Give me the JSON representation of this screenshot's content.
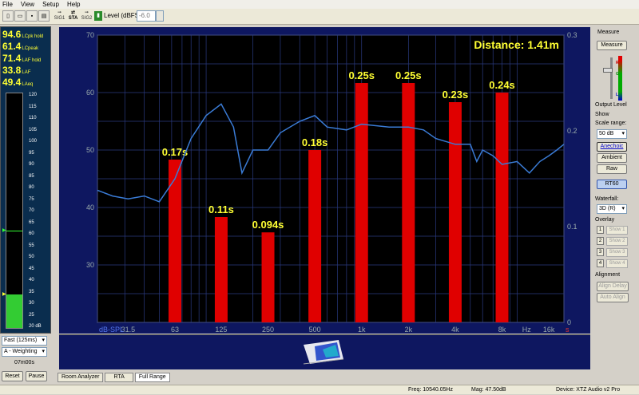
{
  "menu": [
    "File",
    "View",
    "Setup",
    "Help"
  ],
  "toolbar": {
    "sig1": "SIG1",
    "sta": "STA",
    "sig2": "SIG2",
    "level_label": "Level (dBFS):",
    "level_value": "-6.0"
  },
  "meter": {
    "readings": [
      {
        "value": "94.6",
        "label": "LCpk hold"
      },
      {
        "value": "61.4",
        "label": "LCpeak"
      },
      {
        "value": "71.4",
        "label": "LAF hold"
      },
      {
        "value": "33.8",
        "label": "LAF"
      },
      {
        "value": "49.4",
        "label": "LAeq"
      }
    ],
    "scale": [
      "120",
      "115",
      "110",
      "105",
      "100",
      "95",
      "90",
      "85",
      "80",
      "75",
      "70",
      "65",
      "60",
      "55",
      "50",
      "45",
      "40",
      "35",
      "30",
      "25",
      "20 dB"
    ],
    "level": 33.8,
    "hold": 61.4,
    "speed": "Fast (125ms)",
    "weighting": "A - Weighting",
    "time": "07m00s",
    "reset": "Reset",
    "pause": "Pause"
  },
  "tabs": [
    "Room Analyzer",
    "RTA",
    "Full Range"
  ],
  "right_panel": {
    "measure_heading": "Measure",
    "measure_btn": "Measure",
    "output_level": "Output Level",
    "show": "Show",
    "scale_range": "Scale range:",
    "scale_value": "50 dB",
    "anechoic": "Anechoic",
    "ambient": "Ambient",
    "raw": "Raw",
    "rt60": "RT60",
    "waterfall": "Waterfall:",
    "waterfall_value": "3D (R)",
    "overlay": "Overlay",
    "overlays": [
      {
        "n": "1",
        "label": "Show 1"
      },
      {
        "n": "2",
        "label": "Show 2"
      },
      {
        "n": "3",
        "label": "Show 3"
      },
      {
        "n": "4",
        "label": "Show 4"
      }
    ],
    "alignment": "Alignment",
    "align_delay": "Align Delay",
    "auto_align": "Auto Align",
    "slider_labels": [
      "R",
      "G",
      "L"
    ]
  },
  "status": {
    "freq": "Freq: 10540.05Hz",
    "mag": "Mag: 47.50dB",
    "device": "Device: XTZ Audio v2 Pro"
  },
  "chart_data": {
    "type": "bar",
    "distance_label": "Distance: 1.41m",
    "ylabel": "dB-SPL",
    "y2label": "s",
    "x_unit_label": "Hz",
    "ylim": [
      20,
      70
    ],
    "y2lim": [
      0,
      0.3
    ],
    "yticks": [
      "70",
      "60",
      "50",
      "40",
      "30"
    ],
    "y2ticks": [
      "0.3",
      "0.2",
      "0.1",
      "0"
    ],
    "x_ticks": [
      "31.5",
      "63",
      "125",
      "250",
      "500",
      "1k",
      "2k",
      "4k",
      "8k",
      "16k"
    ],
    "bars": {
      "categories": [
        "63",
        "125",
        "250",
        "500",
        "1k",
        "2k",
        "4k",
        "8k"
      ],
      "values": [
        0.17,
        0.11,
        0.094,
        0.18,
        0.25,
        0.25,
        0.23,
        0.24
      ],
      "labels": [
        "0.17s",
        "0.11s",
        "0.094s",
        "0.18s",
        "0.25s",
        "0.25s",
        "0.23s",
        "0.24s"
      ],
      "color": "#e00000"
    },
    "response_line": {
      "color": "#3a7bd5",
      "points": [
        [
          20,
          43
        ],
        [
          25,
          42
        ],
        [
          31.5,
          41.5
        ],
        [
          40,
          42
        ],
        [
          50,
          41
        ],
        [
          63,
          45
        ],
        [
          80,
          52
        ],
        [
          100,
          56
        ],
        [
          125,
          58
        ],
        [
          150,
          54
        ],
        [
          170,
          46
        ],
        [
          200,
          50
        ],
        [
          250,
          50
        ],
        [
          300,
          53
        ],
        [
          400,
          55
        ],
        [
          500,
          56
        ],
        [
          600,
          54
        ],
        [
          800,
          53.5
        ],
        [
          1000,
          54.5
        ],
        [
          1500,
          54
        ],
        [
          2000,
          54
        ],
        [
          2500,
          53.5
        ],
        [
          3000,
          52
        ],
        [
          4000,
          51
        ],
        [
          5000,
          51
        ],
        [
          5500,
          48
        ],
        [
          6000,
          50
        ],
        [
          7000,
          49
        ],
        [
          8000,
          47.5
        ],
        [
          10000,
          48
        ],
        [
          12000,
          46
        ],
        [
          14000,
          48
        ],
        [
          16000,
          49
        ],
        [
          18000,
          50
        ],
        [
          20000,
          51
        ]
      ]
    },
    "grid": true
  }
}
